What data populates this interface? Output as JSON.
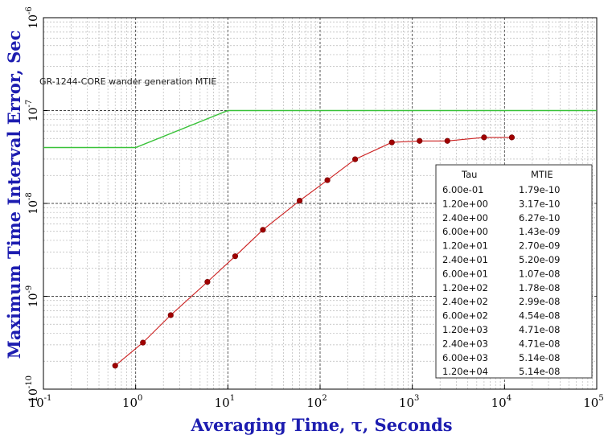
{
  "chart_data": {
    "type": "line",
    "title": "",
    "xlabel": "Averaging Time, τ, Seconds",
    "ylabel": "Maximum Time Interval Error, Sec",
    "x_scale": "log",
    "y_scale": "log",
    "xlim": [
      0.1,
      100000
    ],
    "ylim": [
      1e-10,
      1e-06
    ],
    "grid": true,
    "x_ticks": [
      {
        "base": "10",
        "exp": "-1",
        "value": 0.1
      },
      {
        "base": "10",
        "exp": "0",
        "value": 1
      },
      {
        "base": "10",
        "exp": "1",
        "value": 10
      },
      {
        "base": "10",
        "exp": "2",
        "value": 100
      },
      {
        "base": "10",
        "exp": "3",
        "value": 1000
      },
      {
        "base": "10",
        "exp": "4",
        "value": 10000
      },
      {
        "base": "10",
        "exp": "5",
        "value": 100000
      }
    ],
    "y_ticks": [
      {
        "base": "10",
        "exp": "-10",
        "value": 1e-10
      },
      {
        "base": "10",
        "exp": "-9",
        "value": 1e-09
      },
      {
        "base": "10",
        "exp": "-8",
        "value": 1e-08
      },
      {
        "base": "10",
        "exp": "-7",
        "value": 1e-07
      },
      {
        "base": "10",
        "exp": "-6",
        "value": 1e-06
      }
    ],
    "annotation": "GR-1244-CORE wander generation MTIE",
    "series": [
      {
        "name": "",
        "role": "mask",
        "color": "#39c239",
        "x": [
          0.1,
          1,
          10,
          100000
        ],
        "y": [
          4e-08,
          4e-08,
          1e-07,
          1e-07
        ]
      },
      {
        "name": "",
        "role": "measured",
        "color": "#cc2020",
        "marker_color": "#a00000",
        "x": [
          0.6,
          1.2,
          2.4,
          6,
          12,
          24,
          60,
          120,
          240,
          600,
          1200,
          2400,
          6000,
          12000
        ],
        "y": [
          1.79e-10,
          3.17e-10,
          6.27e-10,
          1.43e-09,
          2.7e-09,
          5.2e-09,
          1.07e-08,
          1.78e-08,
          2.99e-08,
          4.54e-08,
          4.71e-08,
          4.71e-08,
          5.14e-08,
          5.14e-08
        ]
      }
    ],
    "table": {
      "headers": [
        "Tau",
        "MTIE"
      ],
      "rows": [
        [
          "6.00e-01",
          "1.79e-10"
        ],
        [
          "1.20e+00",
          "3.17e-10"
        ],
        [
          "2.40e+00",
          "6.27e-10"
        ],
        [
          "6.00e+00",
          "1.43e-09"
        ],
        [
          "1.20e+01",
          "2.70e-09"
        ],
        [
          "2.40e+01",
          "5.20e-09"
        ],
        [
          "6.00e+01",
          "1.07e-08"
        ],
        [
          "1.20e+02",
          "1.78e-08"
        ],
        [
          "2.40e+02",
          "2.99e-08"
        ],
        [
          "6.00e+02",
          "4.54e-08"
        ],
        [
          "1.20e+03",
          "4.71e-08"
        ],
        [
          "2.40e+03",
          "4.71e-08"
        ],
        [
          "6.00e+03",
          "5.14e-08"
        ],
        [
          "1.20e+04",
          "5.14e-08"
        ]
      ]
    }
  }
}
